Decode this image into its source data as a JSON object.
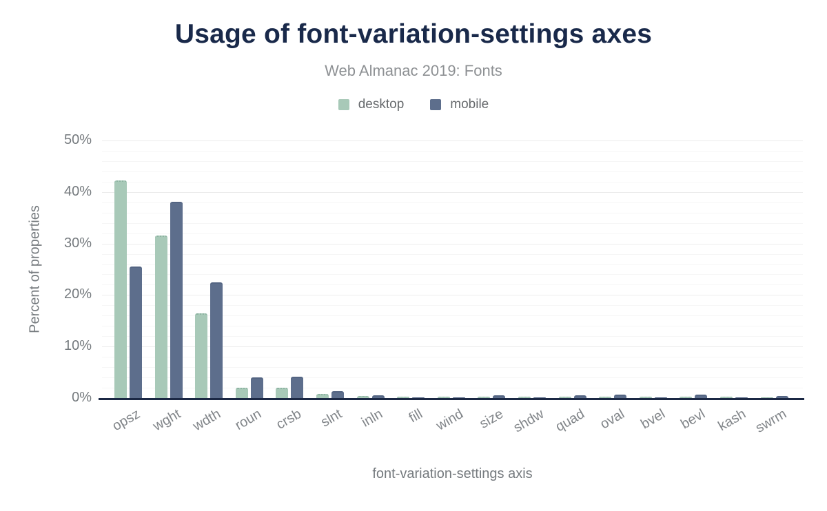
{
  "chart_data": {
    "type": "bar",
    "title": "Usage of font-variation-settings axes",
    "subtitle": "Web Almanac 2019: Fonts",
    "xlabel": "font-variation-settings axis",
    "ylabel": "Percent of properties",
    "categories": [
      "opsz",
      "wght",
      "wdth",
      "roun",
      "crsb",
      "slnt",
      "inln",
      "fill",
      "wind",
      "size",
      "shdw",
      "quad",
      "oval",
      "bvel",
      "bevl",
      "kash",
      "swrm"
    ],
    "series": [
      {
        "name": "desktop",
        "color": "#a8c9b8",
        "values": [
          42.2,
          31.6,
          16.4,
          2.0,
          2.0,
          0.8,
          0.4,
          0.3,
          0.3,
          0.3,
          0.3,
          0.3,
          0.3,
          0.3,
          0.3,
          0.3,
          0.1
        ]
      },
      {
        "name": "mobile",
        "color": "#5d6e8c",
        "values": [
          25.6,
          38.1,
          22.5,
          4.0,
          4.2,
          1.3,
          0.6,
          0.1,
          0.1,
          0.6,
          0.1,
          0.6,
          0.7,
          0.1,
          0.7,
          0.1,
          0.4
        ]
      }
    ],
    "ylim": [
      0,
      50
    ],
    "ytick_labels": [
      "0%",
      "10%",
      "20%",
      "30%",
      "40%",
      "50%"
    ],
    "grid": "horizontal minor lines every 2%, majors every 10%",
    "legend_position": "top-center",
    "x_tick_rotation_deg": -30,
    "colors": {
      "title_text": "#19294a",
      "subtitle_text": "#8d9093",
      "axis_tick_text": "#757a7e",
      "baseline_axis": "#1b2844",
      "gridline_major": "#ececec",
      "gridline_minor": "#f6f6f6",
      "background": "#ffffff"
    }
  }
}
